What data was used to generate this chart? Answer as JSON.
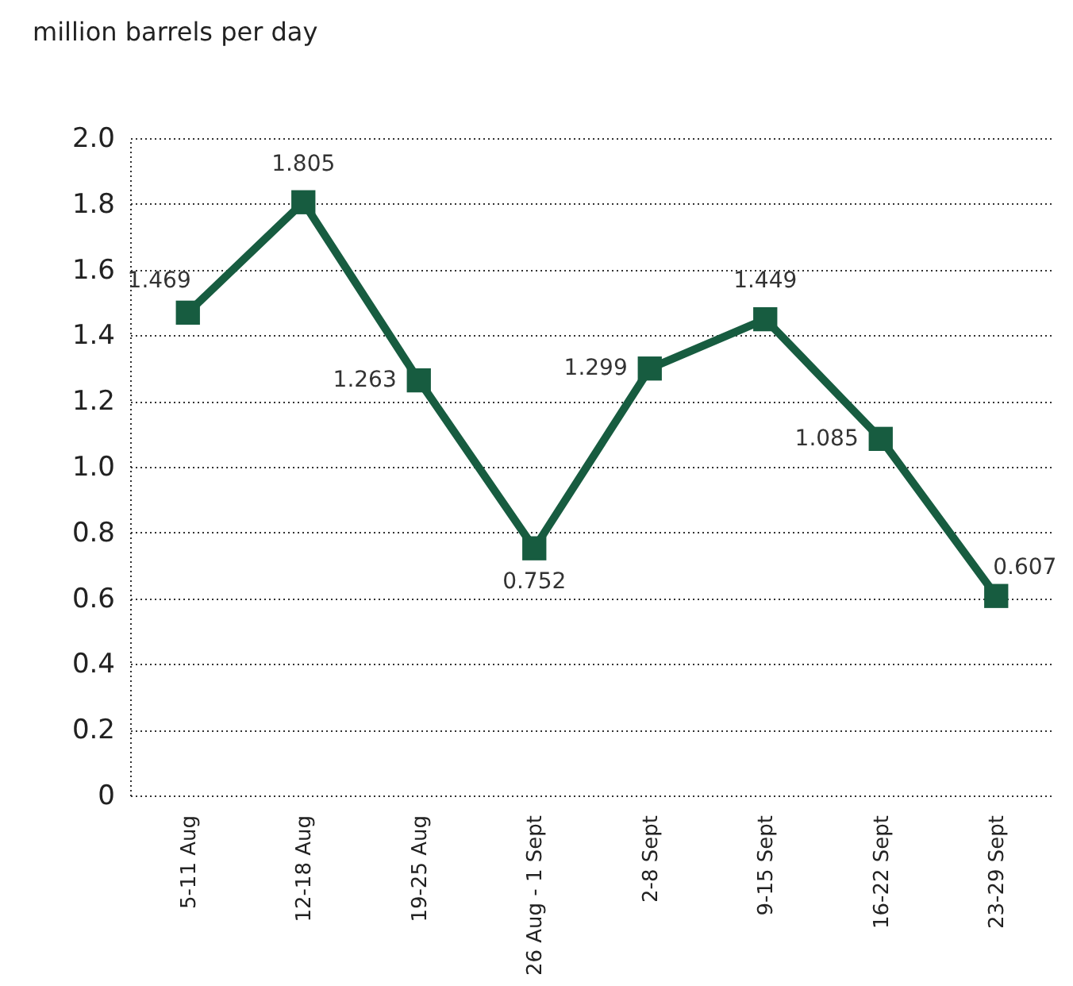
{
  "chart_data": {
    "type": "line",
    "ylabel": "million barrels per day",
    "categories": [
      "5-11 Aug",
      "12-18 Aug",
      "19-25 Aug",
      "26 Aug - 1 Sept",
      "2-8 Sept",
      "9-15 Sept",
      "16-22 Sept",
      "23-29 Sept"
    ],
    "series": [
      {
        "color": "#175c40",
        "values": [
          1.469,
          1.805,
          1.263,
          0.752,
          1.299,
          1.449,
          1.085,
          0.607
        ]
      }
    ],
    "ylim": [
      0,
      2.0
    ],
    "yticks": [
      0,
      {
        "value": 0.2,
        "label": "0.2"
      },
      {
        "value": 0.4,
        "label": "0.4"
      },
      {
        "value": 0.6,
        "label": "0.6"
      },
      {
        "value": 0.8,
        "label": "0.8"
      },
      {
        "value": 1.0,
        "label": "1.0"
      },
      {
        "value": 1.2,
        "label": "1.2"
      },
      {
        "value": 1.4,
        "label": "1.4"
      },
      {
        "value": 1.6,
        "label": "1.6"
      },
      {
        "value": 1.8,
        "label": "1.8"
      },
      {
        "value": 2.0,
        "label": "2.0"
      }
    ],
    "grid": "y",
    "marker": "square",
    "line_style": "solid",
    "data_labels": true,
    "legend": false
  }
}
